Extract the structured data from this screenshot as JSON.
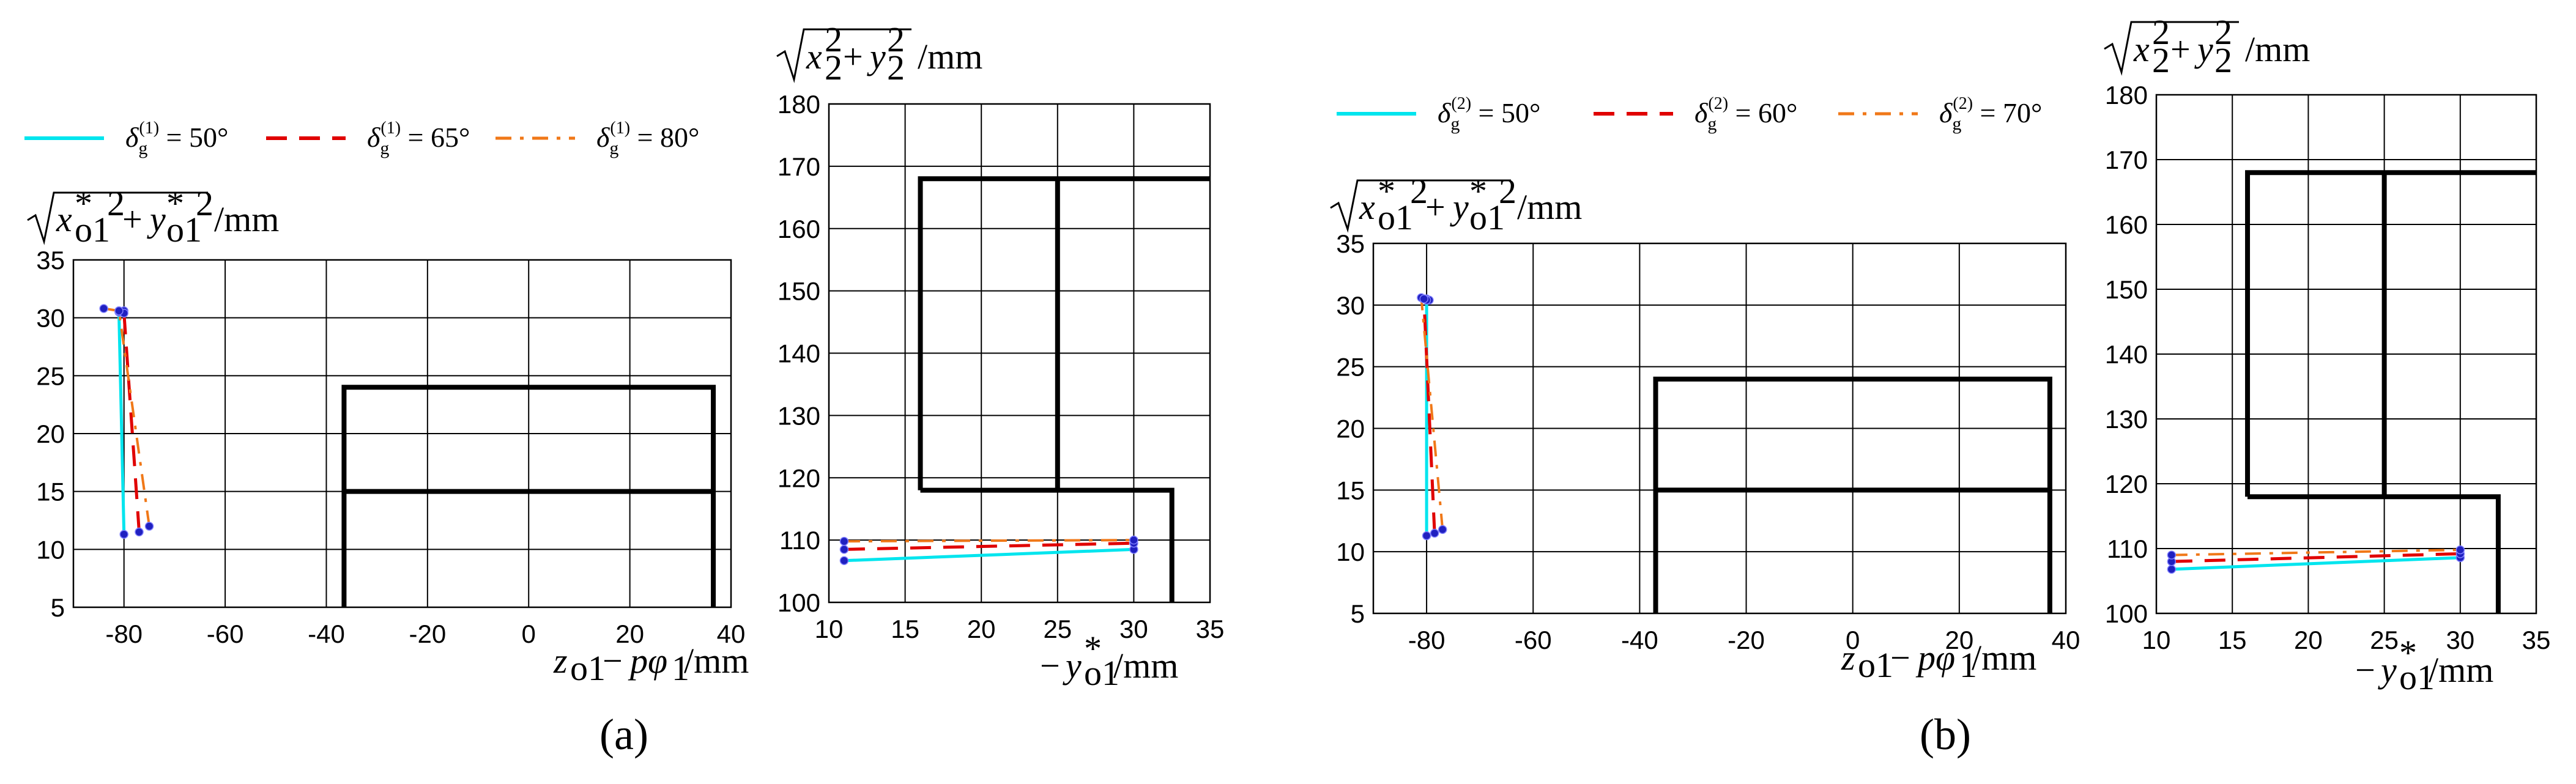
{
  "colors": {
    "s1": "#00e5ee",
    "s2": "#e00000",
    "s3": "#f07818",
    "marker": "#2020c0",
    "boundary": "#000000"
  },
  "panels": [
    {
      "caption": "(a)",
      "legend": [
        "δg(1) = 50°",
        "δg(1) = 65°",
        "δg(1) = 80°"
      ],
      "legend_parts": [
        {
          "sym": "δ",
          "sub": "g",
          "sup": "(1)",
          "rest": " = 50°"
        },
        {
          "sym": "δ",
          "sub": "g",
          "sup": "(1)",
          "rest": " = 65°"
        },
        {
          "sym": "δ",
          "sub": "g",
          "sup": "(1)",
          "rest": " = 80°"
        }
      ]
    },
    {
      "caption": "(b)",
      "legend": [
        "δg(2) = 50°",
        "δg(2) = 60°",
        "δg(2) = 70°"
      ],
      "legend_parts": [
        {
          "sym": "δ",
          "sub": "g",
          "sup": "(2)",
          "rest": " = 50°"
        },
        {
          "sym": "δ",
          "sub": "g",
          "sup": "(2)",
          "rest": " = 60°"
        },
        {
          "sym": "δ",
          "sub": "g",
          "sup": "(2)",
          "rest": " = 70°"
        }
      ]
    }
  ],
  "chart_data": [
    {
      "panel": "a",
      "type": "line",
      "xlabel": "z_o1 − pφ_1 /mm",
      "ylabel": "√(x*_o1² + y*_o1²) /mm",
      "xlim": [
        -90,
        40
      ],
      "ylim": [
        5,
        35
      ],
      "xticks": [
        -80,
        -60,
        -40,
        -20,
        0,
        20,
        40
      ],
      "yticks": [
        5,
        10,
        15,
        20,
        25,
        30,
        35
      ],
      "grid": true,
      "legend": "top",
      "series": [
        {
          "name": "δg(1) = 50°",
          "x": [
            -80,
            -81,
            -80
          ],
          "y": [
            11.3,
            30.5,
            30.6
          ]
        },
        {
          "name": "δg(1) = 65°",
          "x": [
            -77,
            -80,
            -81
          ],
          "y": [
            11.5,
            30.4,
            30.6
          ]
        },
        {
          "name": "δg(1) = 80°",
          "x": [
            -75,
            -81,
            -84
          ],
          "y": [
            12.0,
            30.6,
            30.8
          ]
        }
      ],
      "boundaries": [
        {
          "x": [
            -36.5,
            -36.5,
            36.5,
            36.5
          ],
          "y": [
            5,
            24,
            24,
            5
          ]
        },
        {
          "x": [
            -36.5,
            36.5
          ],
          "y": [
            15,
            15
          ]
        }
      ]
    },
    {
      "panel": "a",
      "type": "line",
      "xlabel": "−y*_o1 /mm",
      "ylabel": "√(x_2² + y_2²) /mm",
      "xlim": [
        10,
        35
      ],
      "ylim": [
        100,
        180
      ],
      "xticks": [
        10,
        15,
        20,
        25,
        30,
        35
      ],
      "yticks": [
        100,
        110,
        120,
        130,
        140,
        150,
        160,
        170,
        180
      ],
      "grid": true,
      "legend": "top",
      "series": [
        {
          "name": "δg(1) = 50°",
          "x": [
            11,
            30
          ],
          "y": [
            106.7,
            108.5
          ]
        },
        {
          "name": "δg(1) = 65°",
          "x": [
            11,
            30
          ],
          "y": [
            108.5,
            109.5
          ]
        },
        {
          "name": "δg(1) = 80°",
          "x": [
            11,
            30
          ],
          "y": [
            109.8,
            110.0
          ]
        }
      ],
      "boundaries": [
        {
          "x": [
            16,
            16,
            35
          ],
          "y": [
            118,
            168,
            168
          ]
        },
        {
          "x": [
            16,
            32.5,
            32.5
          ],
          "y": [
            118,
            118,
            100
          ]
        },
        {
          "x": [
            25,
            25
          ],
          "y": [
            118,
            168
          ]
        }
      ]
    },
    {
      "panel": "b",
      "type": "line",
      "xlabel": "z_o1 − pφ_1 /mm",
      "ylabel": "√(x*_o1² + y*_o1²) /mm",
      "xlim": [
        -90,
        40
      ],
      "ylim": [
        5,
        35
      ],
      "xticks": [
        -80,
        -60,
        -40,
        -20,
        0,
        20,
        40
      ],
      "yticks": [
        5,
        10,
        15,
        20,
        25,
        30,
        35
      ],
      "grid": true,
      "legend": "top",
      "series": [
        {
          "name": "δg(2) = 50°",
          "x": [
            -80,
            -80,
            -79.5
          ],
          "y": [
            11.3,
            30.5,
            30.4
          ]
        },
        {
          "name": "δg(2) = 60°",
          "x": [
            -78.5,
            -80.5,
            -80
          ],
          "y": [
            11.5,
            30.5,
            30.4
          ]
        },
        {
          "name": "δg(2) = 70°",
          "x": [
            -77,
            -81,
            -80.5
          ],
          "y": [
            11.8,
            30.6,
            30.5
          ]
        }
      ],
      "boundaries": [
        {
          "x": [
            -37,
            -37,
            37,
            37
          ],
          "y": [
            5,
            24,
            24,
            5
          ]
        },
        {
          "x": [
            -37,
            37
          ],
          "y": [
            15,
            15
          ]
        }
      ]
    },
    {
      "panel": "b",
      "type": "line",
      "xlabel": "−y*_o1 /mm",
      "ylabel": "√(x_2² + y_2²) /mm",
      "xlim": [
        10,
        35
      ],
      "ylim": [
        100,
        180
      ],
      "xticks": [
        10,
        15,
        20,
        25,
        30,
        35
      ],
      "yticks": [
        100,
        110,
        120,
        130,
        140,
        150,
        160,
        170,
        180
      ],
      "grid": true,
      "legend": "top",
      "series": [
        {
          "name": "δg(2) = 50°",
          "x": [
            11,
            30
          ],
          "y": [
            106.8,
            108.6
          ]
        },
        {
          "name": "δg(2) = 60°",
          "x": [
            11,
            30
          ],
          "y": [
            108.0,
            109.2
          ]
        },
        {
          "name": "δg(2) = 70°",
          "x": [
            11,
            30
          ],
          "y": [
            109.0,
            109.8
          ]
        }
      ],
      "boundaries": [
        {
          "x": [
            16,
            16,
            35
          ],
          "y": [
            118,
            168,
            168
          ]
        },
        {
          "x": [
            16,
            32.5,
            32.5
          ],
          "y": [
            118,
            118,
            100
          ]
        },
        {
          "x": [
            25,
            25
          ],
          "y": [
            118,
            168
          ]
        }
      ]
    }
  ]
}
